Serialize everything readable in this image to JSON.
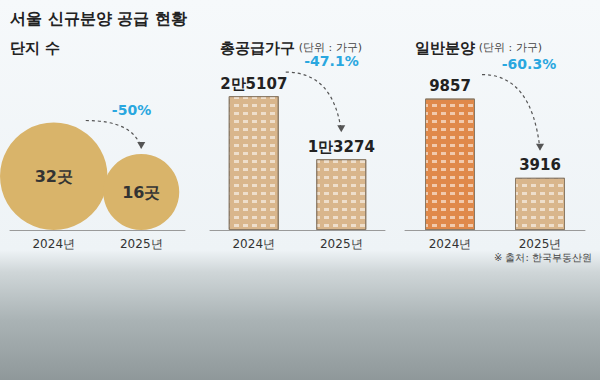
{
  "title": "서울 신규분양 공급 현황",
  "source": "※ 출처: 한국부동산원",
  "chart_data": [
    {
      "type": "bubble",
      "title": "단지 수",
      "categories": [
        "2024년",
        "2025년"
      ],
      "values": [
        32,
        16
      ],
      "value_labels": [
        "32곳",
        "16곳"
      ],
      "color": "#d9b46a",
      "annotation": "-50%",
      "data_labels": true,
      "tick_labels": "x",
      "grid": false
    },
    {
      "type": "bar",
      "title": "총공급가구",
      "subtitle": "(단위 : 가구)",
      "categories": [
        "2024년",
        "2025년"
      ],
      "values": [
        25107,
        13274
      ],
      "value_labels": [
        "2만5107",
        "1만3274"
      ],
      "colors": [
        "#d9b68c",
        "#d9b68c"
      ],
      "ylim": [
        0,
        30000
      ],
      "annotation": "-47.1%",
      "data_labels": true,
      "tick_labels": "x",
      "grid": false
    },
    {
      "type": "bar",
      "title": "일반분양",
      "subtitle": "(단위 : 가구)",
      "categories": [
        "2024년",
        "2025년"
      ],
      "values": [
        9857,
        3916
      ],
      "colors": [
        "#e0894a",
        "#d9b68c"
      ],
      "ylim": [
        0,
        12000
      ],
      "annotation": "-60.3%",
      "data_labels": true,
      "tick_labels": "x",
      "grid": false
    }
  ]
}
